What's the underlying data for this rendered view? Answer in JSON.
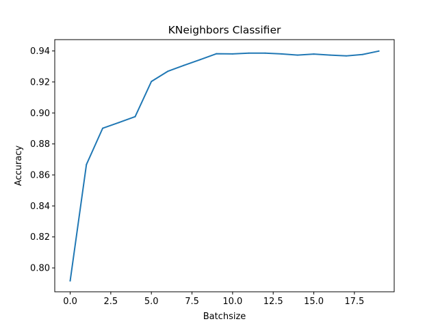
{
  "chart_data": {
    "type": "line",
    "title": "KNeighbors Classifier",
    "xlabel": "Batchsize",
    "ylabel": "Accuracy",
    "xlim": [
      -0.95,
      19.95
    ],
    "ylim": [
      0.7846,
      0.9473
    ],
    "xticks": [
      0.0,
      2.5,
      5.0,
      7.5,
      10.0,
      12.5,
      15.0,
      17.5
    ],
    "xtick_labels": [
      "0.0",
      "2.5",
      "5.0",
      "7.5",
      "10.0",
      "12.5",
      "15.0",
      "17.5"
    ],
    "yticks": [
      0.8,
      0.82,
      0.84,
      0.86,
      0.88,
      0.9,
      0.92,
      0.94
    ],
    "ytick_labels": [
      "0.80",
      "0.82",
      "0.84",
      "0.86",
      "0.88",
      "0.90",
      "0.92",
      "0.94"
    ],
    "grid": false,
    "series": [
      {
        "color": "#1f77b4",
        "x": [
          0,
          1,
          2,
          3,
          4,
          5,
          6,
          7,
          8,
          9,
          10,
          11,
          12,
          13,
          14,
          15,
          16,
          17,
          18,
          19
        ],
        "y": [
          0.7917,
          0.8667,
          0.8901,
          0.8938,
          0.8976,
          0.9203,
          0.9268,
          0.9307,
          0.9344,
          0.9382,
          0.9381,
          0.9386,
          0.9386,
          0.9381,
          0.9373,
          0.938,
          0.9373,
          0.9368,
          0.9377,
          0.9399
        ]
      }
    ]
  }
}
